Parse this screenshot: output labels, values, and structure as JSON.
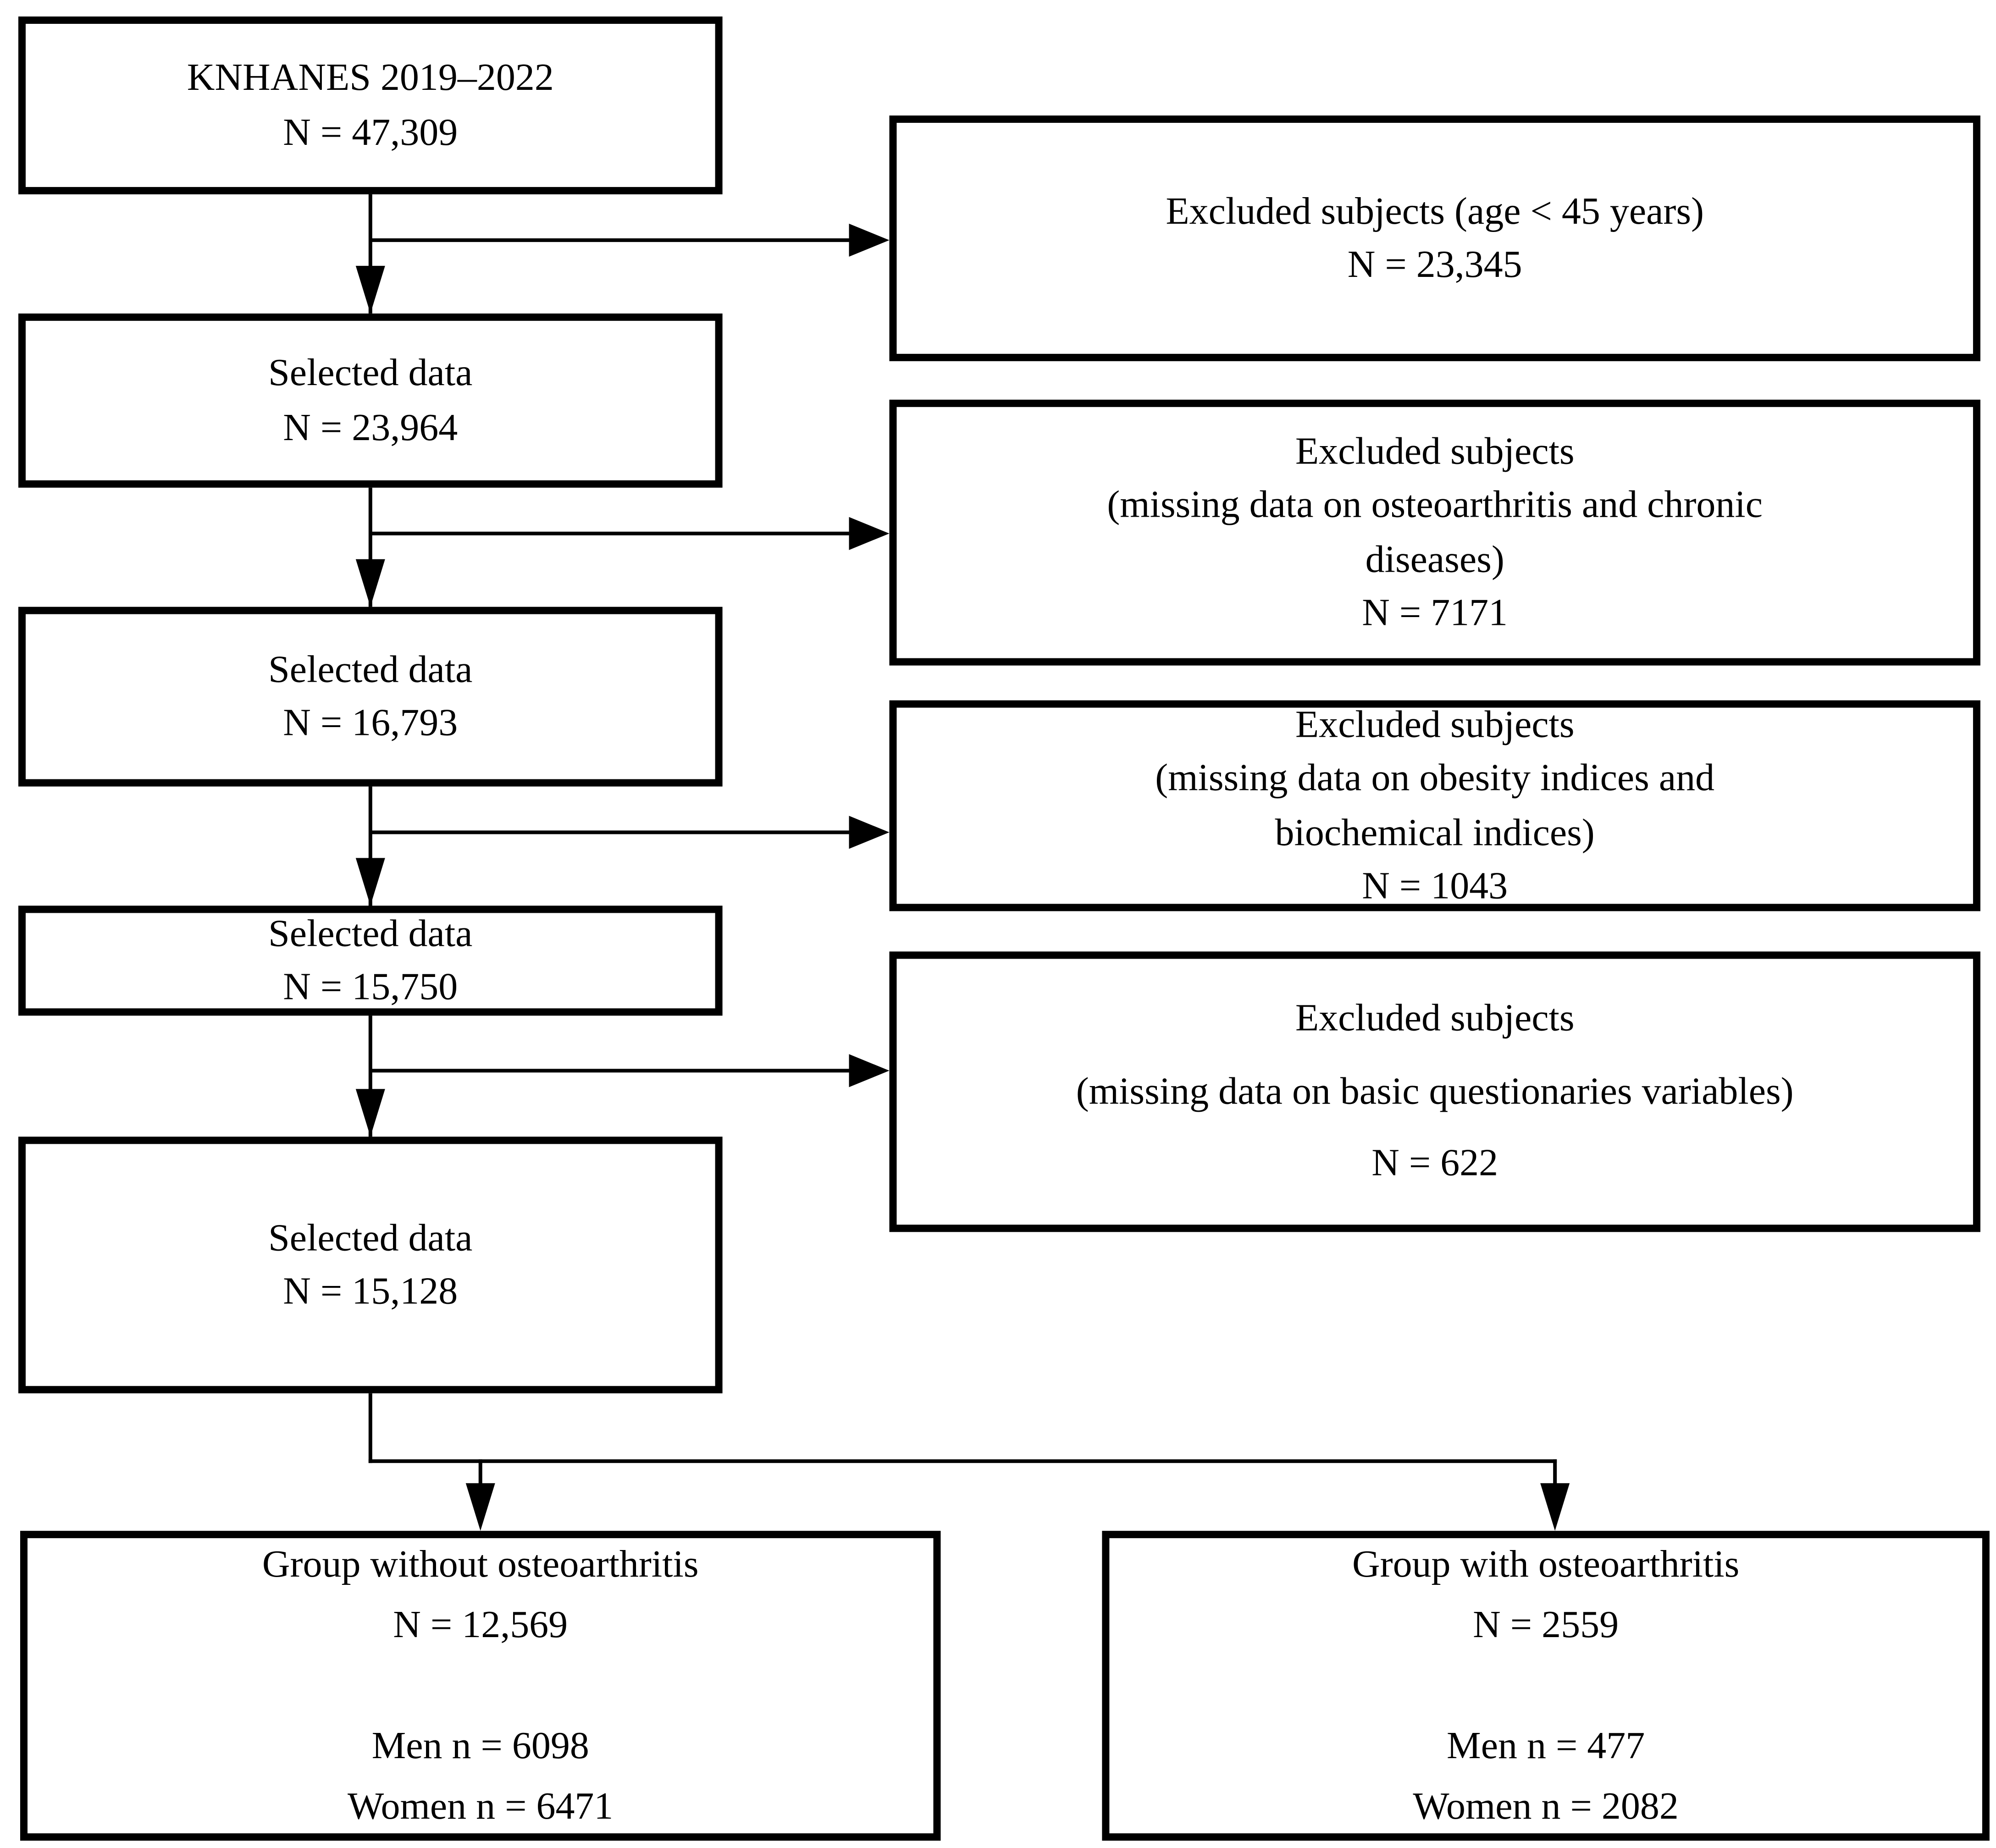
{
  "flowchart": {
    "main_boxes": [
      {
        "id": "knhanes",
        "lines": [
          "KNHANES 2019–2022",
          "N = 47,309"
        ]
      },
      {
        "id": "selected1",
        "lines": [
          "Selected data",
          "N = 23,964"
        ]
      },
      {
        "id": "selected2",
        "lines": [
          "Selected data",
          "N = 16,793"
        ]
      },
      {
        "id": "selected3",
        "lines": [
          "Selected data",
          "N = 15,750"
        ]
      },
      {
        "id": "selected4",
        "lines": [
          "Selected data",
          "N = 15,128"
        ]
      }
    ],
    "excluded_boxes": [
      {
        "lines": [
          "Excluded subjects (age < 45 years)",
          "N = 23,345"
        ]
      },
      {
        "lines": [
          "Excluded subjects",
          "(missing data on osteoarthritis and chronic",
          "diseases)",
          "N = 7171"
        ]
      },
      {
        "lines": [
          "Excluded subjects",
          "(missing data on obesity indices and",
          "biochemical indices)",
          "N = 1043"
        ]
      },
      {
        "lines": [
          "Excluded subjects",
          "(missing data on basic questionaries variables)",
          "N = 622"
        ]
      }
    ],
    "outcome_boxes": [
      {
        "lines": [
          "Group without osteoarthritis",
          "N = 12,569",
          "",
          "Men n = 6098",
          "Women n = 6471"
        ]
      },
      {
        "lines": [
          "Group with osteoarthritis",
          "N = 2559",
          "",
          "Men n = 477",
          "Women n = 2082"
        ]
      }
    ],
    "colors": {
      "background": "#ffffff",
      "box_border": "#000000",
      "line": "#000000",
      "text": "#000000"
    }
  }
}
